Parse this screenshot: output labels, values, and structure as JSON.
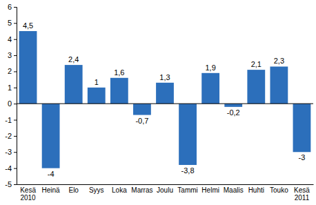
{
  "chart_data": {
    "type": "bar",
    "categories": [
      "Kesä 2010",
      "Heinä",
      "Elo",
      "Syys",
      "Loka",
      "Marras",
      "Joulu",
      "Tammi",
      "Helmi",
      "Maalis",
      "Huhti",
      "Touko",
      "Kesä 2011"
    ],
    "values": [
      4.5,
      -4,
      2.4,
      1,
      1.6,
      -0.7,
      1.3,
      -3.8,
      1.9,
      -0.2,
      2.1,
      2.3,
      -3
    ],
    "value_labels": [
      "4,5",
      "-4",
      "2,4",
      "1",
      "1,6",
      "-0,7",
      "1,3",
      "-3,8",
      "1,9",
      "-0,2",
      "2,1",
      "2,3",
      "-3"
    ],
    "data_labels": true,
    "color": "#2c6fbb",
    "ylim": [
      -5,
      6
    ],
    "yticks": [
      -5,
      -4,
      -3,
      -2,
      -1,
      0,
      1,
      2,
      3,
      4,
      5,
      6
    ],
    "grid": false
  }
}
